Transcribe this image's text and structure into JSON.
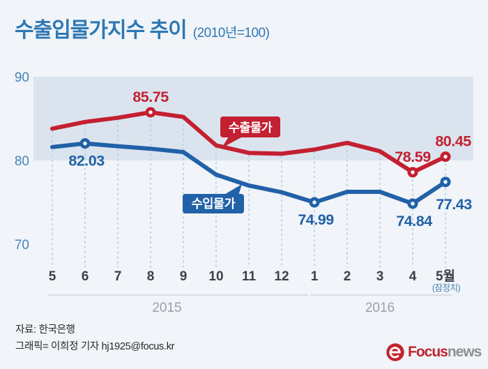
{
  "header": {
    "title": "수출입물가지수 추이",
    "subtitle": "(2010년=100)"
  },
  "chart_data": {
    "type": "line",
    "x_labels": [
      "5",
      "6",
      "7",
      "8",
      "9",
      "10",
      "11",
      "12",
      "1",
      "2",
      "3",
      "4",
      "5월"
    ],
    "x_last_note": "(잠정치)",
    "x_groups": [
      {
        "label": "2015",
        "from": 0,
        "to": 7
      },
      {
        "label": "2016",
        "from": 8,
        "to": 12
      }
    ],
    "y_ticks": [
      90,
      80,
      70
    ],
    "y_band": [
      80,
      90
    ],
    "grid": "dashed-vertical-droplines",
    "legend_position": "inline-callouts",
    "series": [
      {
        "name": "수출물가",
        "color": "#c32031",
        "values": [
          83.8,
          84.6,
          85.1,
          85.75,
          85.2,
          81.8,
          80.9,
          80.8,
          81.3,
          82.1,
          81.1,
          78.59,
          80.45
        ],
        "labeled_points": [
          {
            "index": 3,
            "label": "85.75",
            "position": "above"
          },
          {
            "index": 11,
            "label": "78.59",
            "position": "above"
          },
          {
            "index": 12,
            "label": "80.45",
            "position": "above-right"
          }
        ]
      },
      {
        "name": "수입물가",
        "color": "#2161a8",
        "values": [
          81.6,
          82.03,
          81.7,
          81.4,
          81.0,
          78.3,
          77.0,
          76.2,
          74.99,
          76.25,
          76.25,
          74.84,
          77.43
        ],
        "labeled_points": [
          {
            "index": 1,
            "label": "82.03",
            "position": "below"
          },
          {
            "index": 8,
            "label": "74.99",
            "position": "below"
          },
          {
            "index": 11,
            "label": "74.84",
            "position": "below"
          },
          {
            "index": 12,
            "label": "77.43",
            "position": "below-right"
          }
        ]
      }
    ],
    "callouts": [
      {
        "text": "수출물가",
        "color": "#c32031"
      },
      {
        "text": "수입물가",
        "color": "#2161a8"
      }
    ]
  },
  "footer": {
    "source": "자료: 한국은행",
    "credit": "그래픽= 이희정 기자 hj1925@focus.kr",
    "logo": {
      "brand": "Focus",
      "brand_suffix": "news",
      "icon": "focus-swirl-e-icon"
    }
  },
  "colors": {
    "background": "#f1f4f8",
    "band": "#dbe4ee",
    "gridline": "#a5cfe3",
    "year_line": "#d9dde2",
    "title_blue": "#2e78b4",
    "axis_blue": "#4584b7",
    "x_tick": "#3a4149",
    "year_label": "#9aa0a8",
    "export_red": "#c32031",
    "import_blue": "#2161a8",
    "logo_red": "#c0242e",
    "logo_gray": "#8d9093"
  }
}
